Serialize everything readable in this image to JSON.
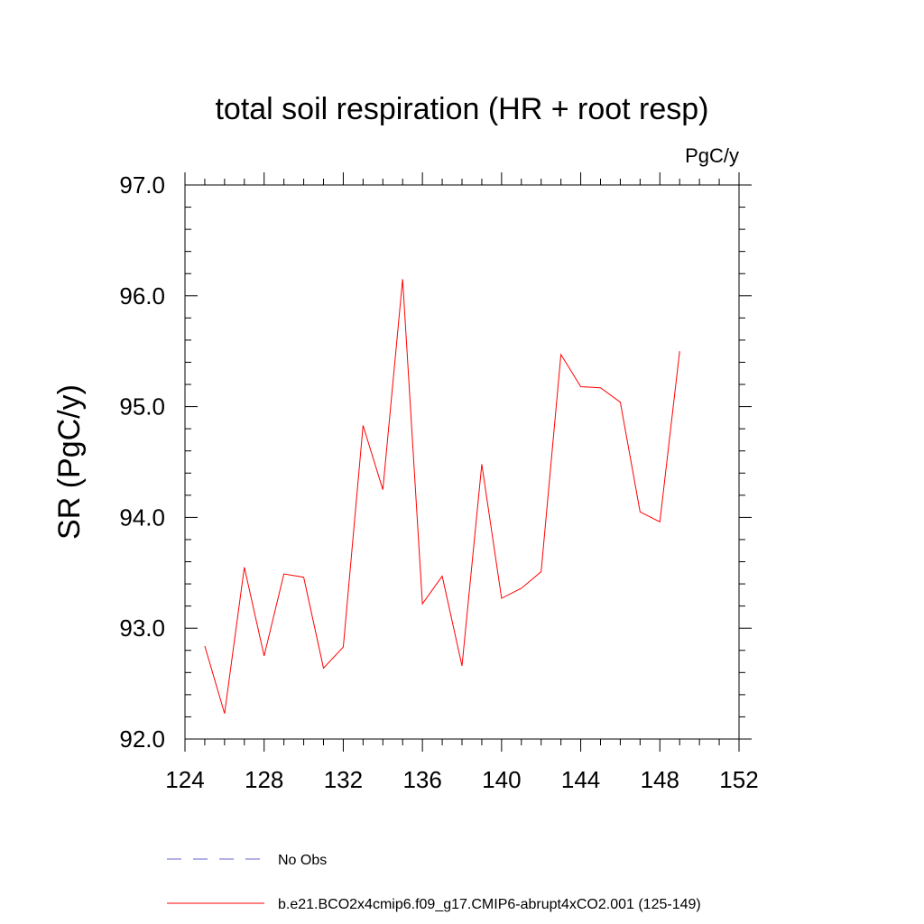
{
  "chart_data": {
    "type": "line",
    "title": "total soil respiration (HR + root resp)",
    "units": "PgC/y",
    "xlabel": "",
    "ylabel": "SR  (PgC/y)",
    "xlim": [
      124,
      152
    ],
    "ylim": [
      92.0,
      97.0
    ],
    "x_ticks": [
      124,
      128,
      132,
      136,
      140,
      144,
      148,
      152
    ],
    "x_tick_labels": [
      "124",
      "128",
      "132",
      "136",
      "140",
      "144",
      "148",
      "152"
    ],
    "y_ticks": [
      92.0,
      93.0,
      94.0,
      95.0,
      96.0,
      97.0
    ],
    "y_tick_labels": [
      "92.0",
      "93.0",
      "94.0",
      "95.0",
      "96.0",
      "97.0"
    ],
    "grid": false,
    "legend_position": "bottom",
    "series": [
      {
        "name": "b.e21.BCO2x4cmip6.f09_g17.CMIP6-abrupt4xCO2.001 (125-149)",
        "color": "#ff0000",
        "style": "solid",
        "x": [
          125,
          126,
          127,
          128,
          129,
          130,
          131,
          132,
          133,
          134,
          135,
          136,
          137,
          138,
          139,
          140,
          141,
          142,
          143,
          144,
          145,
          146,
          147,
          148,
          149
        ],
        "y": [
          92.84,
          92.23,
          93.55,
          92.75,
          93.49,
          93.46,
          92.64,
          92.83,
          94.83,
          94.25,
          96.15,
          93.22,
          93.47,
          92.66,
          94.48,
          93.27,
          93.36,
          93.51,
          95.47,
          95.18,
          95.17,
          95.04,
          94.05,
          93.96,
          95.5
        ]
      }
    ],
    "legend": [
      {
        "label": "No Obs",
        "color": "#6666cc",
        "style": "dashed"
      },
      {
        "label": "b.e21.BCO2x4cmip6.f09_g17.CMIP6-abrupt4xCO2.001 (125-149)",
        "color": "#ff0000",
        "style": "solid"
      }
    ]
  }
}
